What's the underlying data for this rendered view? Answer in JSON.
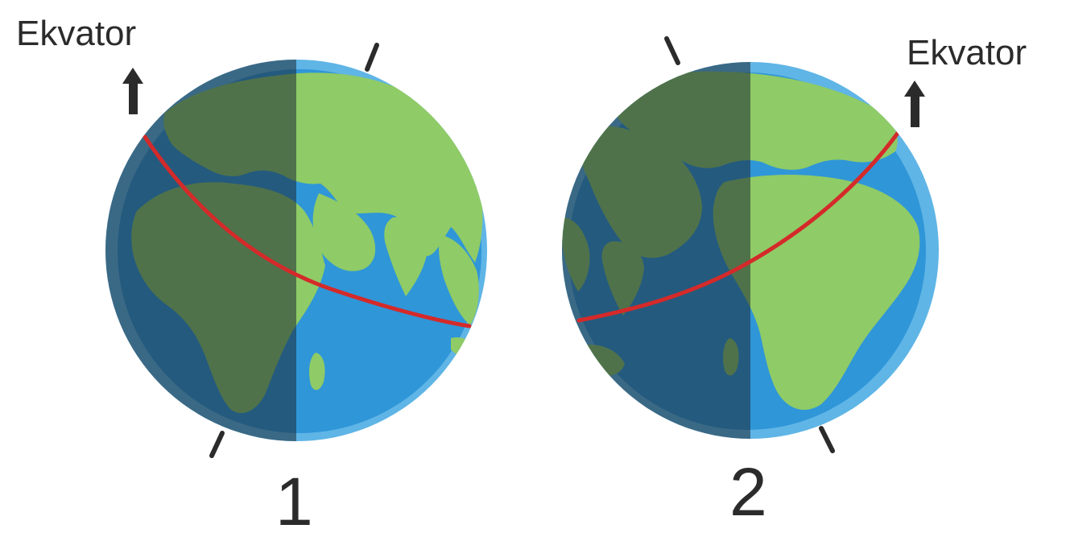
{
  "globes": [
    {
      "id": "globe-1",
      "number_label": "1",
      "equator_label": "Ekvator",
      "tilt": "right"
    },
    {
      "id": "globe-2",
      "number_label": "2",
      "equator_label": "Ekvator",
      "tilt": "left"
    }
  ],
  "colors": {
    "ocean": "#2f96d8",
    "ocean_rim": "#5fb5e6",
    "land": "#8fcb66",
    "night_overlay": "#1b2a34",
    "equator_line": "#d42a2a",
    "axis": "#2b2b2b",
    "label": "#2b2b2b"
  }
}
